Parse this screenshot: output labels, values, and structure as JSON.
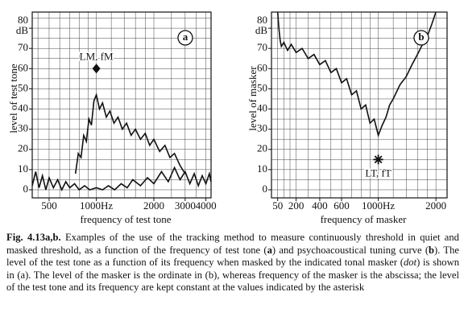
{
  "chart_data": [
    {
      "type": "line",
      "panel": "a",
      "xscale": "bark",
      "xlabel": "frequency of test tone",
      "ylabel": "level of test tone",
      "y_unit": "dB",
      "xlim": [
        350,
        4300
      ],
      "ylim": [
        -4,
        88
      ],
      "xticks": [
        500,
        {
          "value": 1000,
          "label": "1000Hz"
        },
        2000,
        3000,
        4000
      ],
      "yticks": [
        0,
        10,
        20,
        30,
        40,
        50,
        60,
        70,
        80
      ],
      "x_gridlines": [
        400,
        500,
        600,
        700,
        800,
        900,
        1000,
        1200,
        1400,
        1600,
        1800,
        2000,
        2500,
        3000,
        3500,
        4000
      ],
      "y_gridlines": [
        0,
        5,
        10,
        15,
        20,
        25,
        30,
        35,
        40,
        45,
        50,
        55,
        60,
        65,
        70,
        75,
        80,
        85
      ],
      "series": [
        {
          "color": "#111",
          "x": [
            350,
            380,
            410,
            440,
            470,
            500,
            540,
            580,
            620,
            660,
            700,
            750,
            800,
            860,
            920,
            1000,
            1080,
            1160,
            1250,
            1350,
            1450,
            1550,
            1700,
            1850,
            2000,
            2200,
            2400,
            2600,
            2800,
            3000,
            3200,
            3400,
            3600,
            3800,
            4000,
            4200,
            4300
          ],
          "values": [
            2,
            9,
            1,
            7,
            0,
            6,
            1,
            5,
            0,
            4,
            1,
            3,
            0,
            2,
            0,
            1,
            0,
            2,
            0,
            3,
            1,
            5,
            2,
            6,
            3,
            9,
            4,
            11,
            5,
            9,
            3,
            8,
            2,
            7,
            3,
            8,
            4
          ]
        },
        {
          "color": "#111",
          "x": [
            760,
            790,
            820,
            850,
            880,
            910,
            940,
            970,
            1000,
            1040,
            1080,
            1130,
            1180,
            1240,
            1300,
            1370,
            1440,
            1520,
            1600,
            1700,
            1800,
            1900,
            2000,
            2150,
            2300,
            2450,
            2600,
            2800,
            3000
          ],
          "values": [
            8,
            18,
            16,
            27,
            24,
            35,
            32,
            44,
            47,
            40,
            43,
            36,
            39,
            33,
            36,
            30,
            33,
            27,
            30,
            25,
            28,
            22,
            25,
            19,
            22,
            16,
            18,
            12,
            8
          ]
        }
      ],
      "marker": {
        "shape": "dot",
        "x": 1000,
        "y": 60,
        "label": "LM, fM"
      }
    },
    {
      "type": "line",
      "panel": "b",
      "xscale": "bark",
      "xlabel": "frequency of masker",
      "ylabel": "level of masker",
      "y_unit": "dB",
      "xlim": [
        0,
        2300
      ],
      "ylim": [
        -4,
        88
      ],
      "xticks": [
        50,
        200,
        400,
        600,
        {
          "value": 1000,
          "label": "1000Hz"
        },
        2000
      ],
      "yticks": [
        0,
        10,
        20,
        30,
        40,
        50,
        60,
        70,
        80
      ],
      "x_gridlines": [
        50,
        100,
        150,
        200,
        300,
        400,
        500,
        600,
        700,
        800,
        900,
        1000,
        1200,
        1400,
        1600,
        1800,
        2000
      ],
      "y_gridlines": [
        0,
        5,
        10,
        15,
        20,
        25,
        30,
        35,
        40,
        45,
        50,
        55,
        60,
        65,
        70,
        75,
        80,
        85
      ],
      "series": [
        {
          "color": "#111",
          "x": [
            50,
            60,
            70,
            80,
            100,
            130,
            160,
            200,
            250,
            300,
            350,
            400,
            450,
            500,
            550,
            600,
            650,
            700,
            750,
            800,
            850,
            900,
            950,
            1000,
            1050,
            1100,
            1150,
            1200,
            1300,
            1400,
            1500,
            1600,
            1700,
            1800,
            1900,
            2000
          ],
          "values": [
            88,
            80,
            74,
            71,
            73,
            69,
            72,
            68,
            70,
            65,
            67,
            62,
            64,
            58,
            60,
            53,
            55,
            47,
            49,
            40,
            42,
            33,
            35,
            27,
            32,
            36,
            42,
            45,
            52,
            56,
            62,
            67,
            72,
            76,
            82,
            88
          ]
        }
      ],
      "marker": {
        "shape": "asterisk",
        "x": 1000,
        "y": 15,
        "label": "LT, fT"
      }
    }
  ],
  "caption": {
    "label": "Fig. 4.13a,b.",
    "segments": [
      {
        "text": " Examples of the use of the tracking method to measure continuously threshold in quiet and masked threshold, as a function of the frequency of test tone (",
        "style": "normal"
      },
      {
        "text": "a",
        "style": "bold"
      },
      {
        "text": ") and psychoacoustical tuning curve (",
        "style": "normal"
      },
      {
        "text": "b",
        "style": "bold"
      },
      {
        "text": "). The level of the test tone as a function of its frequency when masked by the indicated tonal masker (",
        "style": "normal"
      },
      {
        "text": "dot",
        "style": "italic"
      },
      {
        "text": ") is shown in (a). The level of the masker is the ordinate in (b), whereas frequency of the masker is the abscissa; the level of the test tone and its frequency are kept constant at the values indicated by the asterisk",
        "style": "normal"
      }
    ]
  }
}
